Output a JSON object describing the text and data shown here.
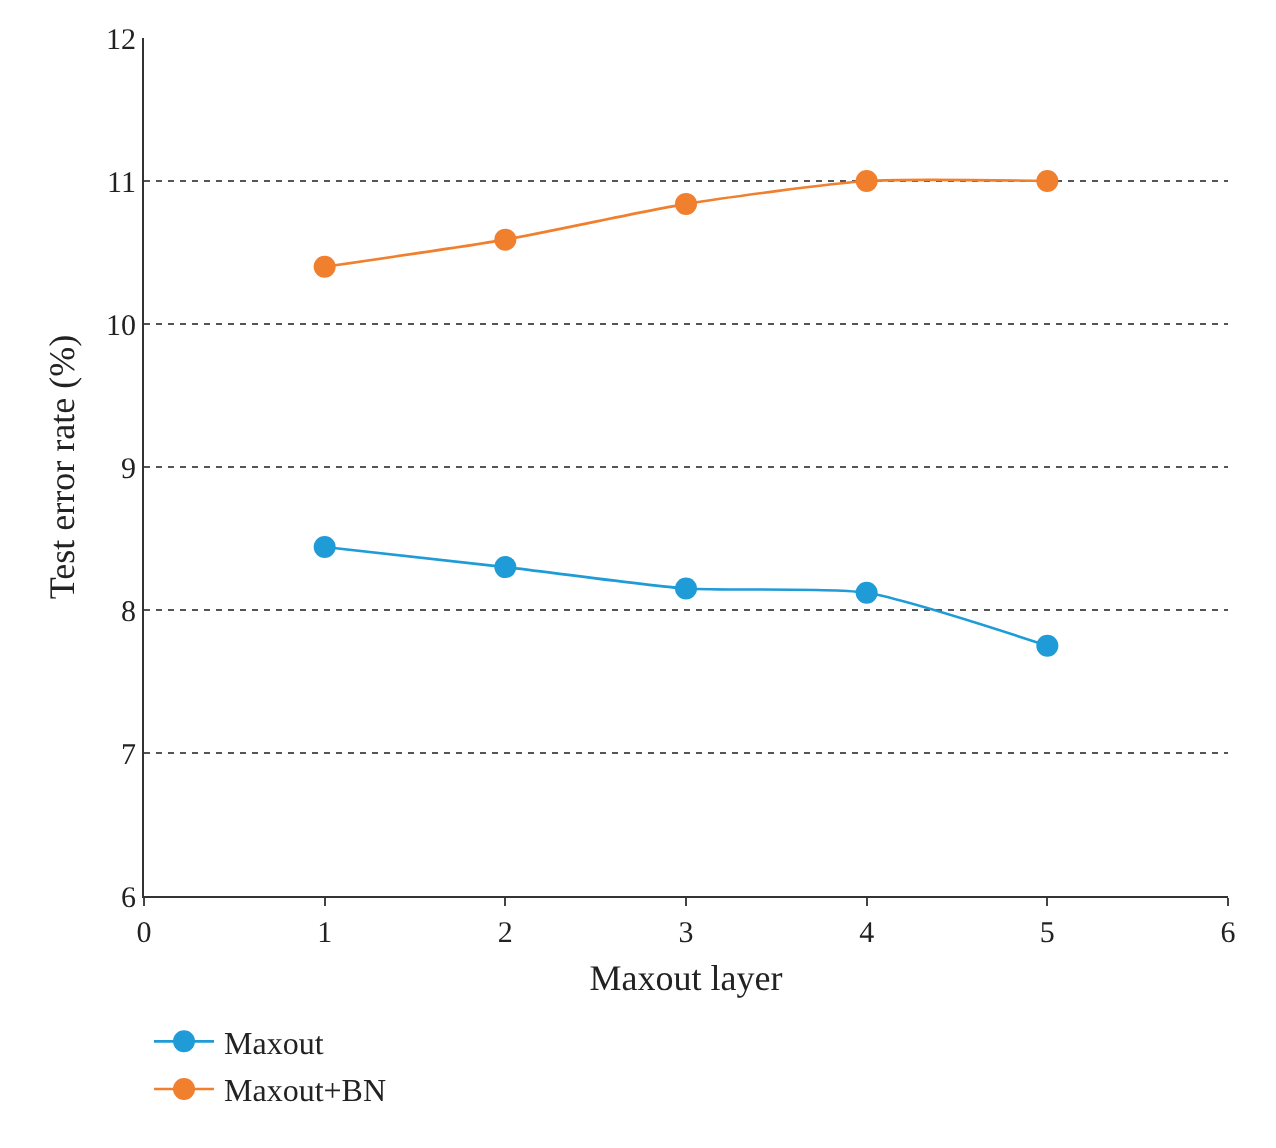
{
  "chart_data": {
    "type": "line",
    "xlabel": "Maxout layer",
    "ylabel": "Test error rate (%)",
    "x": [
      1,
      2,
      3,
      4,
      5
    ],
    "series": [
      {
        "name": "Maxout",
        "color": "#1f9bd7",
        "values": [
          8.44,
          8.3,
          8.15,
          8.12,
          7.75
        ]
      },
      {
        "name": "Maxout+BN",
        "color": "#f07f2e",
        "values": [
          10.4,
          10.59,
          10.84,
          11.0,
          11.0
        ]
      }
    ],
    "xlim": [
      0,
      6
    ],
    "xticks": [
      0,
      1,
      2,
      3,
      4,
      5,
      6
    ],
    "ylim": [
      6,
      12
    ],
    "yticks": [
      6,
      7,
      8,
      9,
      10,
      11,
      12
    ],
    "grid": "y",
    "legend": "bottom left",
    "marker": "circle",
    "line_style": "solid"
  }
}
